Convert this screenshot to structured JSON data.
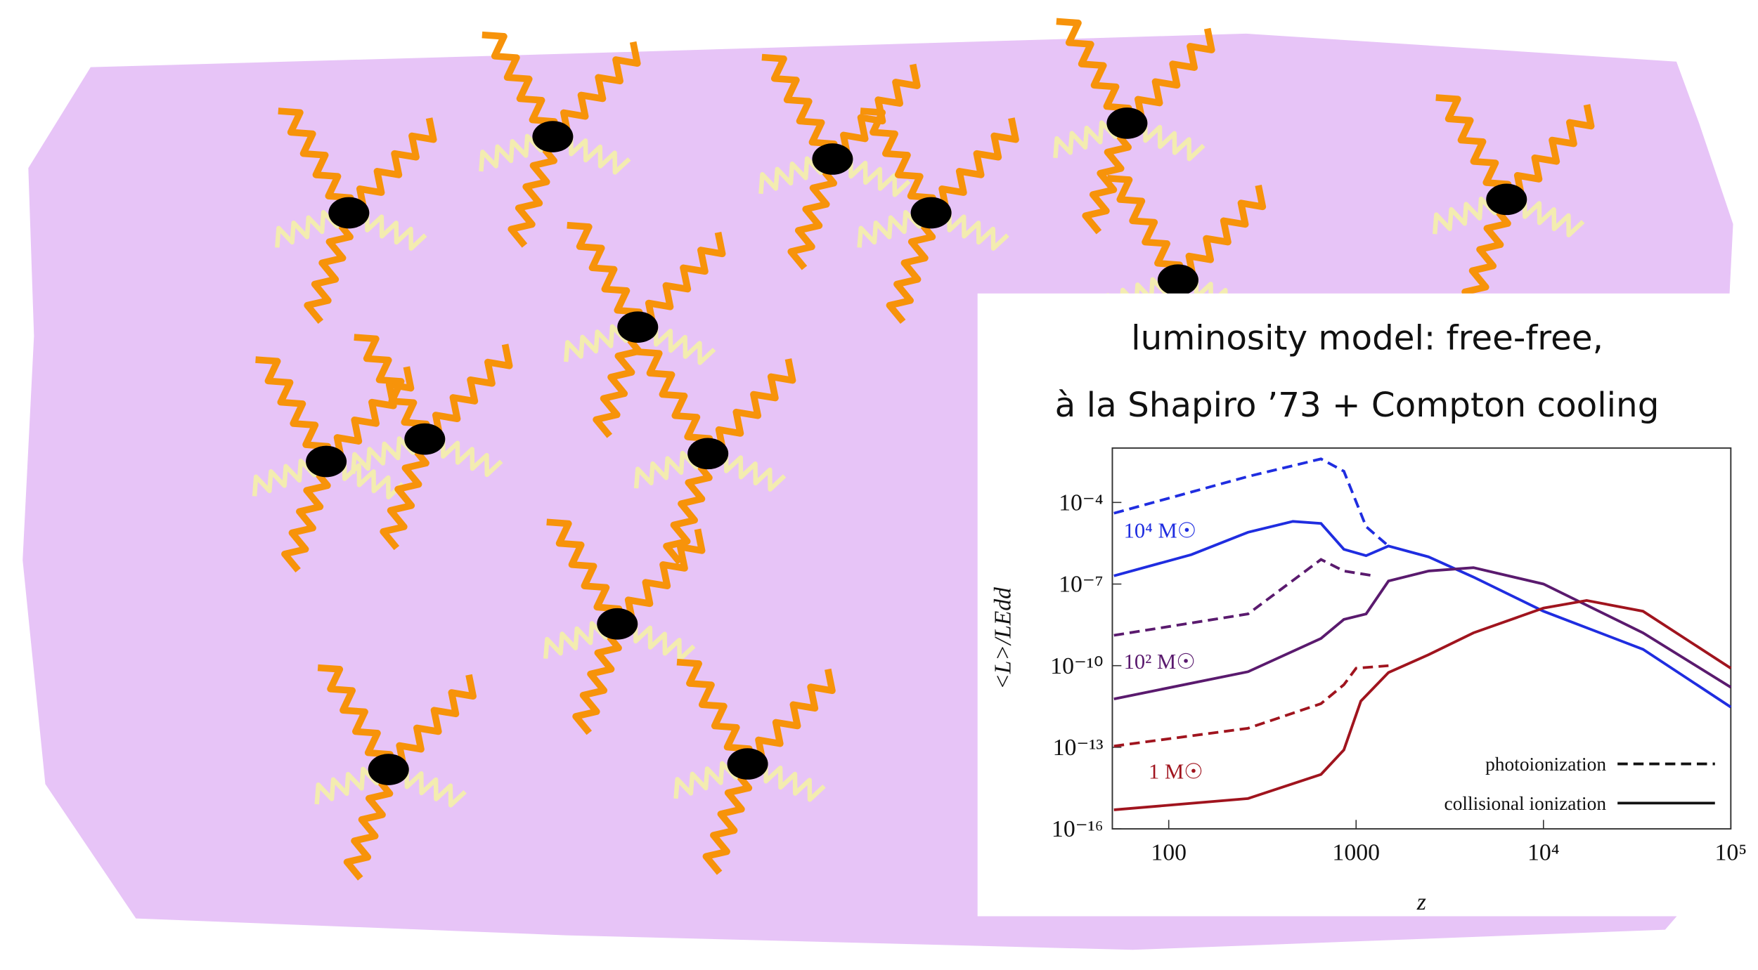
{
  "chart_data": {
    "type": "line",
    "title": [
      "luminosity model: free-free,",
      "à la Shapiro ’73 + Compton cooling"
    ],
    "xlabel": "z",
    "ylabel": "<L>/LEdd",
    "xscale": "log",
    "yscale": "log",
    "xlim": [
      50,
      100000
    ],
    "ylim": [
      1e-16,
      0.01
    ],
    "xticks": [
      100,
      1000,
      {
        "value": 10000,
        "label": "10⁴"
      },
      {
        "value": 100000,
        "label": "10⁵"
      }
    ],
    "yticks": [
      {
        "value": 1e-16,
        "label": "10⁻¹⁶"
      },
      {
        "value": 1e-13,
        "label": "10⁻¹³"
      },
      {
        "value": 1e-10,
        "label": "10⁻¹⁰"
      },
      {
        "value": 1e-07,
        "label": "10⁻⁷"
      },
      {
        "value": 0.0001,
        "label": "10⁻⁴"
      }
    ],
    "series": [
      {
        "color": "#1f2de0",
        "dashed": true,
        "x": [
          51,
          265,
          650,
          860,
          1130,
          1490
        ],
        "values": [
          4e-05,
          0.0009,
          0.004,
          0.0014,
          1.3e-05,
          2.5e-06
        ]
      },
      {
        "color": "#1f2de0",
        "dashed": false,
        "x": [
          51,
          132,
          265,
          460,
          650,
          860,
          1130,
          1490,
          2430,
          4230,
          10000,
          34000,
          100000
        ],
        "values": [
          2e-07,
          1.2e-06,
          8e-06,
          2e-05,
          1.7e-05,
          1.9e-06,
          1.1e-06,
          2.5e-06,
          1e-06,
          1.8e-07,
          1e-08,
          4e-10,
          3e-12
        ]
      },
      {
        "color": "#5a1a6e",
        "dashed": true,
        "x": [
          51,
          265,
          650,
          860,
          1250
        ],
        "values": [
          1.3e-09,
          8e-09,
          8e-07,
          3e-07,
          2e-07
        ]
      },
      {
        "color": "#5a1a6e",
        "dashed": false,
        "x": [
          51,
          265,
          650,
          860,
          1130,
          1490,
          2430,
          4230,
          10000,
          34000,
          100000
        ],
        "values": [
          6e-12,
          6e-11,
          1e-09,
          5e-09,
          8e-09,
          1.3e-07,
          3e-07,
          4e-07,
          1e-07,
          1.6e-09,
          1.6e-11
        ]
      },
      {
        "color": "#a0141e",
        "dashed": true,
        "x": [
          51,
          265,
          650,
          860,
          1000,
          1490
        ],
        "values": [
          1.1e-13,
          5e-13,
          4e-12,
          2e-11,
          8e-11,
          1e-10
        ]
      },
      {
        "color": "#a0141e",
        "dashed": false,
        "x": [
          51,
          265,
          650,
          860,
          1060,
          1490,
          2430,
          4230,
          10000,
          17000,
          34000,
          100000
        ],
        "values": [
          5e-16,
          1.3e-15,
          1e-14,
          8e-14,
          5e-12,
          5.6e-11,
          2.5e-10,
          1.6e-09,
          1.3e-08,
          2.5e-08,
          1e-08,
          8e-11
        ]
      }
    ],
    "annotations": [
      {
        "text": "10⁴ M☉",
        "color": "#1f2de0"
      },
      {
        "text": "10² M☉",
        "color": "#5a1a6e"
      },
      {
        "text": "1 M☉",
        "color": "#a0141e"
      }
    ],
    "legend": [
      {
        "label": "photoionization",
        "dashed": true
      },
      {
        "label": "collisional ionization",
        "dashed": false
      }
    ]
  }
}
